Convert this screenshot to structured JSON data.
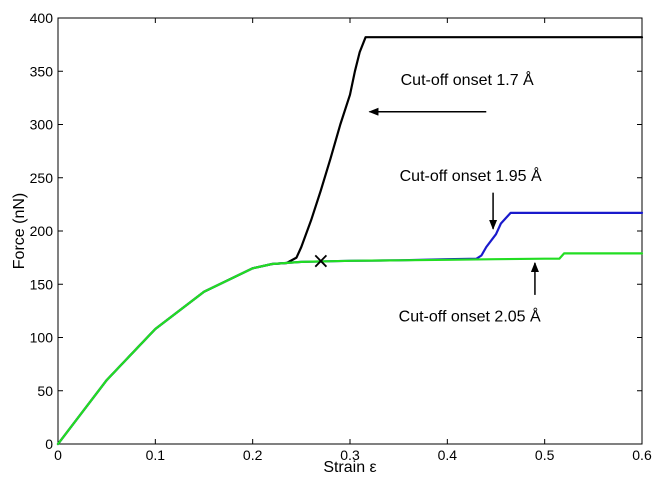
{
  "chart_data": {
    "type": "line",
    "title": "",
    "xlabel": "Strain ε",
    "ylabel": "Force (nN)",
    "xlim": [
      0,
      0.6
    ],
    "ylim": [
      0,
      400
    ],
    "x_ticks": [
      "0",
      "0.1",
      "0.2",
      "0.3",
      "0.4",
      "0.5",
      "0.6"
    ],
    "y_ticks": [
      "0",
      "50",
      "100",
      "150",
      "200",
      "250",
      "300",
      "350",
      "400"
    ],
    "grid": false,
    "legend": null,
    "series": [
      {
        "color": "#000000",
        "x": [
          0,
          0.05,
          0.1,
          0.15,
          0.2,
          0.22,
          0.235,
          0.245,
          0.25,
          0.26,
          0.27,
          0.28,
          0.29,
          0.3,
          0.305,
          0.31,
          0.316,
          0.6
        ],
        "y": [
          0,
          60,
          108,
          143,
          165,
          169,
          170,
          175,
          185,
          210,
          238,
          268,
          300,
          328,
          350,
          368,
          382,
          382
        ]
      },
      {
        "color": "#1a1acc",
        "x": [
          0,
          0.05,
          0.1,
          0.15,
          0.2,
          0.22,
          0.25,
          0.3,
          0.35,
          0.4,
          0.43,
          0.435,
          0.44,
          0.45,
          0.455,
          0.465,
          0.6
        ],
        "y": [
          0,
          60,
          108,
          143,
          165,
          169,
          171,
          172,
          172.5,
          173.5,
          174,
          177,
          185,
          197,
          207,
          217,
          217
        ]
      },
      {
        "color": "#22dd22",
        "x": [
          0,
          0.05,
          0.1,
          0.15,
          0.2,
          0.22,
          0.25,
          0.3,
          0.35,
          0.4,
          0.45,
          0.5,
          0.515,
          0.52,
          0.6
        ],
        "y": [
          0,
          60,
          108,
          143,
          165,
          169,
          171,
          172,
          172.5,
          173,
          173.5,
          174,
          174,
          179,
          179
        ]
      }
    ],
    "marker": {
      "symbol": "×",
      "x": 0.27,
      "y": 172
    },
    "annotations": [
      {
        "text": "Cut-off onset 1.7 Å",
        "text_x": 0.352,
        "text_y": 337,
        "arrow_from": [
          0.44,
          312
        ],
        "arrow_to": [
          0.32,
          312
        ]
      },
      {
        "text": "Cut-off onset 1.95 Å",
        "text_x": 0.351,
        "text_y": 247,
        "arrow_from": [
          0.447,
          236
        ],
        "arrow_to": [
          0.447,
          202
        ]
      },
      {
        "text": "Cut-off onset 2.05 Å",
        "text_x": 0.35,
        "text_y": 115,
        "arrow_from": [
          0.49,
          140
        ],
        "arrow_to": [
          0.49,
          170
        ]
      }
    ]
  }
}
